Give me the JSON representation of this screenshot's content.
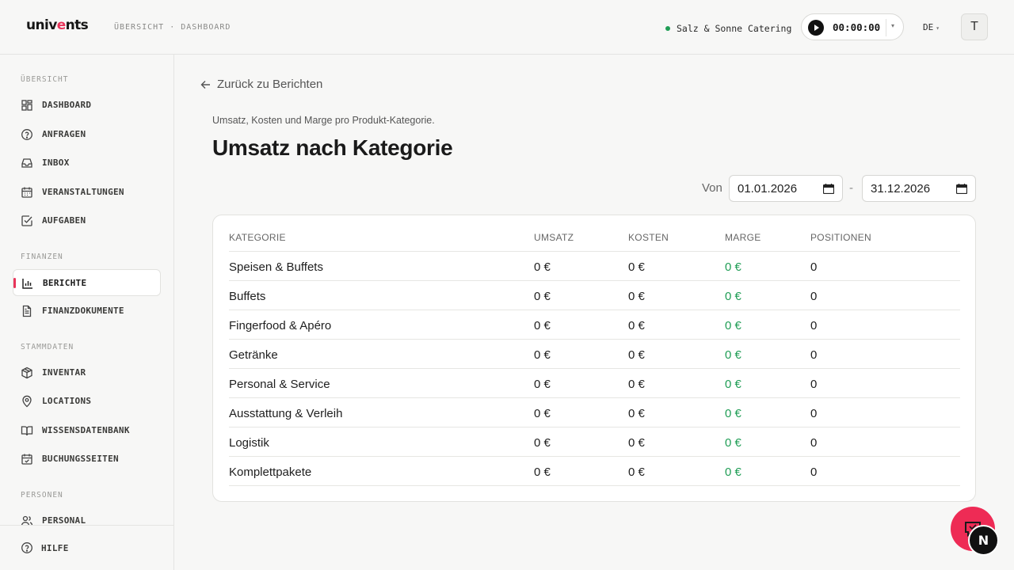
{
  "header": {
    "logo": {
      "before": "univ",
      "accent": "e",
      "after": "nts"
    },
    "breadcrumb": "ÜBERSICHT · DASHBOARD",
    "tenant": "Salz & Sonne Catering",
    "timer": "00:00:00",
    "language": "DE",
    "avatar_initial": "T"
  },
  "sidebar": {
    "sections": {
      "overview": "ÜBERSICHT",
      "finance": "FINANZEN",
      "master": "STAMMDATEN",
      "people": "PERSONEN"
    },
    "items": [
      {
        "label": "DASHBOARD",
        "icon": "dashboard-icon"
      },
      {
        "label": "ANFRAGEN",
        "icon": "question-circle-icon"
      },
      {
        "label": "INBOX",
        "icon": "inbox-icon"
      },
      {
        "label": "VERANSTALTUNGEN",
        "icon": "calendar-icon"
      },
      {
        "label": "AUFGABEN",
        "icon": "check-square-icon"
      },
      {
        "label": "BERICHTE",
        "icon": "bar-chart-icon",
        "active": true
      },
      {
        "label": "FINANZDOKUMENTE",
        "icon": "document-icon"
      },
      {
        "label": "INVENTAR",
        "icon": "box-icon"
      },
      {
        "label": "LOCATIONS",
        "icon": "map-pin-icon"
      },
      {
        "label": "WISSENSDATENBANK",
        "icon": "book-icon"
      },
      {
        "label": "BUCHUNGSSEITEN",
        "icon": "calendar-check-icon"
      },
      {
        "label": "PERSONAL",
        "icon": "users-icon"
      }
    ],
    "help": "HILFE"
  },
  "main": {
    "back_link": "Zurück zu Berichten",
    "subtitle": "Umsatz, Kosten und Marge pro Produkt-Kategorie.",
    "title": "Umsatz nach Kategorie",
    "date_from_label": "Von",
    "date_from": "01.01.2026",
    "date_separator": "-",
    "date_to": "31.12.2026",
    "table": {
      "columns": [
        "KATEGORIE",
        "UMSATZ",
        "KOSTEN",
        "MARGE",
        "POSITIONEN"
      ],
      "rows": [
        [
          "Speisen & Buffets",
          "0 €",
          "0 €",
          "0 €",
          "0"
        ],
        [
          "Buffets",
          "0 €",
          "0 €",
          "0 €",
          "0"
        ],
        [
          "Fingerfood & Apéro",
          "0 €",
          "0 €",
          "0 €",
          "0"
        ],
        [
          "Getränke",
          "0 €",
          "0 €",
          "0 €",
          "0"
        ],
        [
          "Personal & Service",
          "0 €",
          "0 €",
          "0 €",
          "0"
        ],
        [
          "Ausstattung & Verleih",
          "0 €",
          "0 €",
          "0 €",
          "0"
        ],
        [
          "Logistik",
          "0 €",
          "0 €",
          "0 €",
          "0"
        ],
        [
          "Komplettpakete",
          "0 €",
          "0 €",
          "0 €",
          "0"
        ]
      ]
    }
  },
  "floating": {
    "feedback_icon": "chat-icon",
    "badge": "N"
  },
  "colors": {
    "accent": "#e8345a",
    "positive": "#1f9d55",
    "fab": "#ee2b55"
  }
}
